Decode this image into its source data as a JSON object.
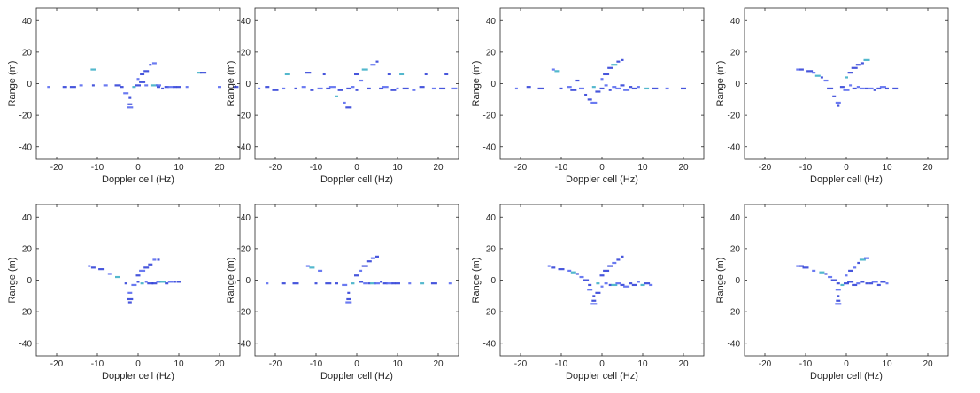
{
  "chart_data": [
    {
      "type": "scatter",
      "xlabel": "Doppler cell (Hz)",
      "ylabel": "Range (m)",
      "xlim": [
        -25,
        25
      ],
      "ylim": [
        -48,
        48
      ],
      "xticks": [
        "-20",
        "-10",
        "0",
        "10",
        "20"
      ],
      "yticks": [
        "-40",
        "-20",
        "0",
        "20",
        "40"
      ],
      "points": [
        [
          -22,
          -2
        ],
        [
          -18,
          -2
        ],
        [
          -16,
          -2
        ],
        [
          -14,
          -1
        ],
        [
          -11,
          9
        ],
        [
          -11,
          -1
        ],
        [
          -8,
          -1
        ],
        [
          -5,
          -1
        ],
        [
          -4,
          -2
        ],
        [
          -3,
          -6
        ],
        [
          -2,
          -9
        ],
        [
          -2,
          -13
        ],
        [
          -2,
          -15
        ],
        [
          -1,
          -2
        ],
        [
          0,
          -1
        ],
        [
          0,
          3
        ],
        [
          1,
          6
        ],
        [
          1,
          1
        ],
        [
          2,
          -1
        ],
        [
          2,
          8
        ],
        [
          3,
          12
        ],
        [
          4,
          13
        ],
        [
          4,
          -1
        ],
        [
          5,
          -2
        ],
        [
          5,
          -1
        ],
        [
          6,
          -3
        ],
        [
          7,
          -2
        ],
        [
          8,
          -2
        ],
        [
          9,
          -2
        ],
        [
          10,
          -2
        ],
        [
          12,
          -2
        ],
        [
          15,
          7
        ],
        [
          16,
          7
        ],
        [
          20,
          -2
        ],
        [
          24,
          -2
        ]
      ]
    },
    {
      "type": "scatter",
      "xlabel": "Doppler cell (Hz)",
      "ylabel": "Range (m)",
      "xlim": [
        -25,
        25
      ],
      "ylim": [
        -48,
        48
      ],
      "xticks": [
        "-20",
        "-10",
        "0",
        "10",
        "20"
      ],
      "yticks": [
        "-40",
        "-20",
        "0",
        "20",
        "40"
      ],
      "points": [
        [
          -24,
          -3
        ],
        [
          -22,
          -2
        ],
        [
          -20,
          -4
        ],
        [
          -18,
          -3
        ],
        [
          -17,
          6
        ],
        [
          -15,
          -3
        ],
        [
          -13,
          -2
        ],
        [
          -12,
          7
        ],
        [
          -11,
          -4
        ],
        [
          -9,
          -3
        ],
        [
          -8,
          6
        ],
        [
          -7,
          -3
        ],
        [
          -6,
          -2
        ],
        [
          -5,
          -8
        ],
        [
          -4,
          -4
        ],
        [
          -3,
          -12
        ],
        [
          -2,
          -3
        ],
        [
          -2,
          -15
        ],
        [
          -1,
          -2
        ],
        [
          0,
          6
        ],
        [
          0,
          -4
        ],
        [
          1,
          2
        ],
        [
          2,
          9
        ],
        [
          3,
          -3
        ],
        [
          4,
          12
        ],
        [
          5,
          14
        ],
        [
          6,
          -3
        ],
        [
          7,
          -2
        ],
        [
          8,
          6
        ],
        [
          9,
          -4
        ],
        [
          10,
          -3
        ],
        [
          11,
          6
        ],
        [
          12,
          -3
        ],
        [
          14,
          -4
        ],
        [
          16,
          -2
        ],
        [
          17,
          6
        ],
        [
          19,
          -3
        ],
        [
          21,
          -3
        ],
        [
          22,
          6
        ],
        [
          24,
          -3
        ]
      ]
    },
    {
      "type": "scatter",
      "xlabel": "Doppler cell (Hz)",
      "ylabel": "Range (m)",
      "xlim": [
        -25,
        25
      ],
      "ylim": [
        -48,
        48
      ],
      "xticks": [
        "-20",
        "-10",
        "0",
        "10",
        "20"
      ],
      "yticks": [
        "-40",
        "-20",
        "0",
        "20",
        "40"
      ],
      "points": [
        [
          -21,
          -3
        ],
        [
          -18,
          -2
        ],
        [
          -15,
          -3
        ],
        [
          -12,
          9
        ],
        [
          -11,
          8
        ],
        [
          -10,
          -3
        ],
        [
          -8,
          -2
        ],
        [
          -7,
          -4
        ],
        [
          -6,
          2
        ],
        [
          -5,
          -3
        ],
        [
          -4,
          -7
        ],
        [
          -3,
          -10
        ],
        [
          -2,
          -12
        ],
        [
          -2,
          -2
        ],
        [
          -1,
          -5
        ],
        [
          0,
          3
        ],
        [
          0,
          -3
        ],
        [
          1,
          6
        ],
        [
          1,
          -1
        ],
        [
          2,
          10
        ],
        [
          2,
          -4
        ],
        [
          3,
          -2
        ],
        [
          3,
          12
        ],
        [
          4,
          14
        ],
        [
          4,
          -3
        ],
        [
          5,
          15
        ],
        [
          5,
          -1
        ],
        [
          6,
          -4
        ],
        [
          7,
          -2
        ],
        [
          8,
          -3
        ],
        [
          9,
          -2
        ],
        [
          11,
          -3
        ],
        [
          13,
          -3
        ],
        [
          16,
          -3
        ],
        [
          20,
          -3
        ]
      ]
    },
    {
      "type": "scatter",
      "xlabel": "Doppler cell (Hz)",
      "ylabel": "Range (m)",
      "xlim": [
        -25,
        25
      ],
      "ylim": [
        -48,
        48
      ],
      "xticks": [
        "-20",
        "-10",
        "0",
        "10",
        "20"
      ],
      "yticks": [
        "-40",
        "-20",
        "0",
        "20",
        "40"
      ],
      "points": [
        [
          -12,
          9
        ],
        [
          -11,
          9
        ],
        [
          -9,
          8
        ],
        [
          -8,
          7
        ],
        [
          -7,
          5
        ],
        [
          -6,
          4
        ],
        [
          -5,
          2
        ],
        [
          -4,
          -3
        ],
        [
          -3,
          -8
        ],
        [
          -2,
          -12
        ],
        [
          -2,
          -14
        ],
        [
          -1,
          -2
        ],
        [
          0,
          -4
        ],
        [
          0,
          4
        ],
        [
          1,
          7
        ],
        [
          1,
          -1
        ],
        [
          2,
          -3
        ],
        [
          2,
          10
        ],
        [
          3,
          -2
        ],
        [
          3,
          12
        ],
        [
          4,
          13
        ],
        [
          4,
          -3
        ],
        [
          5,
          15
        ],
        [
          5,
          -3
        ],
        [
          6,
          -3
        ],
        [
          7,
          -4
        ],
        [
          8,
          -3
        ],
        [
          9,
          -2
        ],
        [
          10,
          -3
        ],
        [
          12,
          -3
        ]
      ]
    },
    {
      "type": "scatter",
      "xlabel": "Doppler cell (Hz)",
      "ylabel": "Range (m)",
      "xlim": [
        -25,
        25
      ],
      "ylim": [
        -48,
        48
      ],
      "xticks": [
        "-20",
        "-10",
        "0",
        "10",
        "20"
      ],
      "yticks": [
        "-40",
        "-20",
        "0",
        "20",
        "40"
      ],
      "points": [
        [
          -12,
          9
        ],
        [
          -11,
          8
        ],
        [
          -9,
          7
        ],
        [
          -7,
          4
        ],
        [
          -5,
          2
        ],
        [
          -3,
          -2
        ],
        [
          -2,
          -8
        ],
        [
          -2,
          -12
        ],
        [
          -2,
          -14
        ],
        [
          -1,
          -3
        ],
        [
          0,
          -1
        ],
        [
          0,
          3
        ],
        [
          1,
          6
        ],
        [
          1,
          -2
        ],
        [
          2,
          8
        ],
        [
          2,
          -1
        ],
        [
          3,
          10
        ],
        [
          3,
          -2
        ],
        [
          4,
          13
        ],
        [
          4,
          -2
        ],
        [
          5,
          13
        ],
        [
          5,
          -1
        ],
        [
          6,
          -1
        ],
        [
          7,
          -2
        ],
        [
          8,
          -1
        ],
        [
          9,
          -1
        ],
        [
          10,
          -1
        ]
      ]
    },
    {
      "type": "scatter",
      "xlabel": "Doppler cell (Hz)",
      "ylabel": "Range (m)",
      "xlim": [
        -25,
        25
      ],
      "ylim": [
        -48,
        48
      ],
      "xticks": [
        "-20",
        "-10",
        "0",
        "10",
        "20"
      ],
      "yticks": [
        "-40",
        "-20",
        "0",
        "20",
        "40"
      ],
      "points": [
        [
          -22,
          -2
        ],
        [
          -18,
          -2
        ],
        [
          -15,
          -2
        ],
        [
          -12,
          9
        ],
        [
          -11,
          8
        ],
        [
          -10,
          -2
        ],
        [
          -9,
          6
        ],
        [
          -7,
          -2
        ],
        [
          -5,
          -2
        ],
        [
          -3,
          -3
        ],
        [
          -2,
          -8
        ],
        [
          -2,
          -12
        ],
        [
          -2,
          -14
        ],
        [
          -1,
          -2
        ],
        [
          0,
          3
        ],
        [
          1,
          6
        ],
        [
          1,
          -1
        ],
        [
          2,
          9
        ],
        [
          2,
          -2
        ],
        [
          3,
          12
        ],
        [
          3,
          -2
        ],
        [
          4,
          14
        ],
        [
          4,
          -2
        ],
        [
          5,
          15
        ],
        [
          5,
          -2
        ],
        [
          6,
          -1
        ],
        [
          7,
          -2
        ],
        [
          8,
          -2
        ],
        [
          9,
          -2
        ],
        [
          10,
          -2
        ],
        [
          13,
          -2
        ],
        [
          16,
          -2
        ],
        [
          19,
          -2
        ],
        [
          23,
          -2
        ]
      ]
    },
    {
      "type": "scatter",
      "xlabel": "Doppler cell (Hz)",
      "ylabel": "Range (m)",
      "xlim": [
        -25,
        25
      ],
      "ylim": [
        -48,
        48
      ],
      "xticks": [
        "-20",
        "-10",
        "0",
        "10",
        "20"
      ],
      "yticks": [
        "-40",
        "-20",
        "0",
        "20",
        "40"
      ],
      "points": [
        [
          -13,
          9
        ],
        [
          -12,
          8
        ],
        [
          -10,
          7
        ],
        [
          -8,
          6
        ],
        [
          -7,
          5
        ],
        [
          -6,
          4
        ],
        [
          -5,
          2
        ],
        [
          -4,
          0
        ],
        [
          -3,
          -3
        ],
        [
          -3,
          -6
        ],
        [
          -2,
          -10
        ],
        [
          -2,
          -13
        ],
        [
          -2,
          -15
        ],
        [
          -1,
          -2
        ],
        [
          -1,
          -8
        ],
        [
          0,
          -4
        ],
        [
          0,
          3
        ],
        [
          1,
          6
        ],
        [
          1,
          -2
        ],
        [
          2,
          9
        ],
        [
          2,
          -3
        ],
        [
          3,
          11
        ],
        [
          3,
          -3
        ],
        [
          4,
          13
        ],
        [
          4,
          -2
        ],
        [
          5,
          15
        ],
        [
          5,
          -3
        ],
        [
          6,
          -4
        ],
        [
          7,
          -2
        ],
        [
          8,
          -3
        ],
        [
          9,
          -1
        ],
        [
          10,
          -3
        ],
        [
          11,
          -2
        ],
        [
          12,
          -3
        ]
      ]
    },
    {
      "type": "scatter",
      "xlabel": "Doppler cell (Hz)",
      "ylabel": "Range (m)",
      "xlim": [
        -25,
        25
      ],
      "ylim": [
        -48,
        48
      ],
      "xticks": [
        "-20",
        "-10",
        "0",
        "10",
        "20"
      ],
      "yticks": [
        "-40",
        "-20",
        "0",
        "20",
        "40"
      ],
      "points": [
        [
          -12,
          9
        ],
        [
          -11,
          9
        ],
        [
          -10,
          8
        ],
        [
          -8,
          6
        ],
        [
          -6,
          5
        ],
        [
          -5,
          4
        ],
        [
          -4,
          2
        ],
        [
          -3,
          0
        ],
        [
          -2,
          -2
        ],
        [
          -2,
          -6
        ],
        [
          -2,
          -10
        ],
        [
          -2,
          -13
        ],
        [
          -2,
          -15
        ],
        [
          -1,
          -3
        ],
        [
          0,
          -2
        ],
        [
          0,
          3
        ],
        [
          1,
          6
        ],
        [
          1,
          -1
        ],
        [
          2,
          8
        ],
        [
          2,
          -3
        ],
        [
          3,
          11
        ],
        [
          3,
          -2
        ],
        [
          4,
          13
        ],
        [
          4,
          -1
        ],
        [
          5,
          14
        ],
        [
          5,
          -2
        ],
        [
          6,
          -2
        ],
        [
          7,
          -1
        ],
        [
          8,
          -3
        ],
        [
          9,
          -1
        ],
        [
          10,
          -2
        ]
      ]
    }
  ],
  "colors": {
    "point": "#3344d8",
    "point_alt": "#5a6cf0",
    "point_hot": "#40b0c8"
  }
}
